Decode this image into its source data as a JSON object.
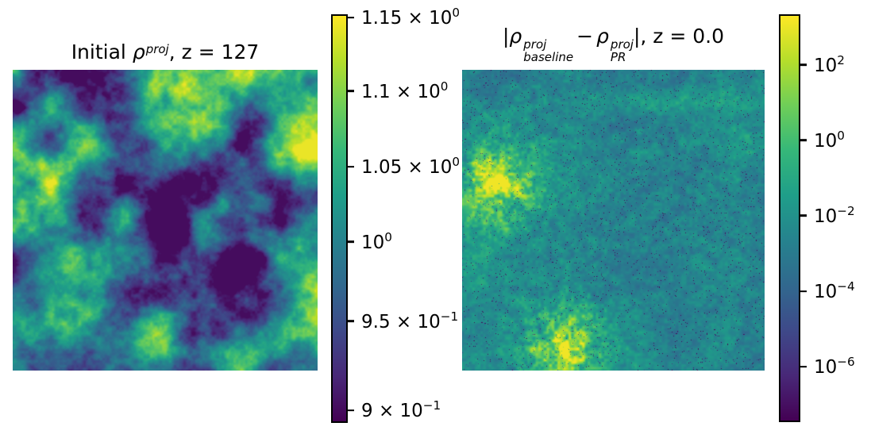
{
  "figure": {
    "background": "#ffffff",
    "description": "two-panel viridis density comparison figure"
  },
  "panels": [
    {
      "id": "left",
      "title": {
        "prefix": "Initial ",
        "rho": "ρ",
        "sup": "proj",
        "suffix": ", z = 127"
      }
    },
    {
      "id": "right",
      "title": {
        "open": "|",
        "rho1": "ρ",
        "sup1": "proj",
        "sub1": "baseline",
        "minus": "−",
        "rho2": "ρ",
        "sup2": "proj",
        "sub2": "PR",
        "close": "|",
        "suffix": ", z = 0.0"
      }
    }
  ],
  "colormap": {
    "name": "viridis",
    "stops": [
      "#440154",
      "#482878",
      "#3e4989",
      "#31688e",
      "#26828e",
      "#1f9e89",
      "#35b779",
      "#6ece58",
      "#b5de2b",
      "#fde725"
    ]
  },
  "colorbars": [
    {
      "id": "left",
      "scale": "log",
      "ticks": [
        {
          "base": "1.15 × 10",
          "exp": "0",
          "frac": 0.008
        },
        {
          "base": "1.1 × 10",
          "exp": "0",
          "frac": 0.188
        },
        {
          "base": "1.05 × 10",
          "exp": "0",
          "frac": 0.373
        },
        {
          "base": "10",
          "exp": "0",
          "frac": 0.557
        },
        {
          "base": "9.5 × 10",
          "exp": "−1",
          "frac": 0.751
        },
        {
          "base": "9 × 10",
          "exp": "−1",
          "frac": 0.969
        }
      ]
    },
    {
      "id": "right",
      "scale": "log",
      "ticks": [
        {
          "base": "10",
          "exp": "2",
          "frac": 0.124
        },
        {
          "base": "10",
          "exp": "0",
          "frac": 0.309
        },
        {
          "base": "10",
          "exp": "−2",
          "frac": 0.494
        },
        {
          "base": "10",
          "exp": "−4",
          "frac": 0.679
        },
        {
          "base": "10",
          "exp": "−6",
          "frac": 0.864
        }
      ]
    }
  ],
  "chart_data": [
    {
      "type": "heatmap",
      "title": "Initial ρ^proj, z = 127",
      "colormap": "viridis",
      "scale": "log",
      "vmin": 0.893,
      "vmax": 1.152,
      "colorbar_ticks": [
        1.15,
        1.1,
        1.05,
        1.0,
        0.95,
        0.9
      ],
      "colorbar_tick_labels": [
        "1.15 × 10⁰",
        "1.1 × 10⁰",
        "1.05 × 10⁰",
        "10⁰",
        "9.5 × 10⁻¹",
        "9 × 10⁻¹"
      ],
      "description": "smooth Gaussian random projected density field, teal background with green/yellow overdense patches and purple underdense blobs",
      "features": [
        {
          "x": 0.42,
          "y": 0.9,
          "rx": 0.09,
          "ry": 0.07,
          "amp": 0.55
        },
        {
          "x": 0.16,
          "y": 0.85,
          "rx": 0.09,
          "ry": 0.07,
          "amp": 0.32
        },
        {
          "x": 0.64,
          "y": 0.2,
          "rx": 0.07,
          "ry": 0.05,
          "amp": 0.22
        },
        {
          "x": 0.03,
          "y": 0.27,
          "rx": 0.05,
          "ry": 0.06,
          "amp": 0.22
        },
        {
          "x": 0.99,
          "y": 0.3,
          "rx": 0.04,
          "ry": 0.05,
          "amp": 0.25
        },
        {
          "x": 0.47,
          "y": 0.02,
          "rx": 0.05,
          "ry": 0.04,
          "amp": 0.18
        },
        {
          "x": 0.12,
          "y": 0.35,
          "rx": 0.05,
          "ry": 0.05,
          "amp": 0.15
        },
        {
          "x": 0.04,
          "y": 0.65,
          "rx": 0.05,
          "ry": 0.05,
          "amp": 0.15
        },
        {
          "x": 0.36,
          "y": 0.35,
          "rx": 0.07,
          "ry": 0.06,
          "amp": -0.4
        },
        {
          "x": 0.36,
          "y": 0.18,
          "rx": 0.06,
          "ry": 0.06,
          "amp": -0.3
        },
        {
          "x": 0.62,
          "y": 0.35,
          "rx": 0.06,
          "ry": 0.05,
          "amp": -0.32
        },
        {
          "x": 0.72,
          "y": 0.68,
          "rx": 0.09,
          "ry": 0.07,
          "amp": -0.52
        },
        {
          "x": 0.52,
          "y": 0.48,
          "rx": 0.08,
          "ry": 0.06,
          "amp": -0.25
        },
        {
          "x": 0.55,
          "y": 0.75,
          "rx": 0.07,
          "ry": 0.05,
          "amp": -0.2
        },
        {
          "x": 0.97,
          "y": 0.02,
          "rx": 0.05,
          "ry": 0.05,
          "amp": -0.42
        },
        {
          "x": 0.86,
          "y": 0.13,
          "rx": 0.08,
          "ry": 0.08,
          "amp": -0.3
        },
        {
          "x": 0.04,
          "y": 0.05,
          "rx": 0.05,
          "ry": 0.05,
          "amp": -0.3
        },
        {
          "x": 0.88,
          "y": 0.83,
          "rx": 0.1,
          "ry": 0.08,
          "amp": -0.2
        }
      ]
    },
    {
      "type": "heatmap",
      "title": "|ρ_baseline^proj − ρ_PR^proj|, z = 0.0",
      "colormap": "viridis",
      "scale": "log",
      "colorbar_ticks": [
        100,
        1,
        0.01,
        0.0001,
        1e-06
      ],
      "colorbar_tick_labels": [
        "10²",
        "10⁰",
        "10⁻²",
        "10⁻⁴",
        "10⁻⁶"
      ],
      "description": "absolute difference map: fine teal speckle with swirling filament texture and two bright grainy halos with yellow cores",
      "features": [
        {
          "x": 0.118,
          "y": 0.375,
          "rx": 0.1,
          "ry": 0.1,
          "amp": 0.4,
          "core": 0.35,
          "core_r": 0.018
        },
        {
          "x": 0.335,
          "y": 0.92,
          "rx": 0.095,
          "ry": 0.095,
          "amp": 0.42,
          "core": 0.4,
          "core_r": 0.015
        },
        {
          "x": 0.7,
          "y": 0.1,
          "rx": 0.22,
          "ry": 0.03,
          "amp": 0.1
        },
        {
          "x": 0.92,
          "y": 0.2,
          "rx": 0.05,
          "ry": 0.1,
          "amp": 0.06
        },
        {
          "x": 0.02,
          "y": 0.55,
          "rx": 0.025,
          "ry": 0.35,
          "amp": 0.05
        },
        {
          "x": 0.1,
          "y": 0.7,
          "rx": 0.05,
          "ry": 0.18,
          "amp": 0.05
        }
      ]
    }
  ]
}
